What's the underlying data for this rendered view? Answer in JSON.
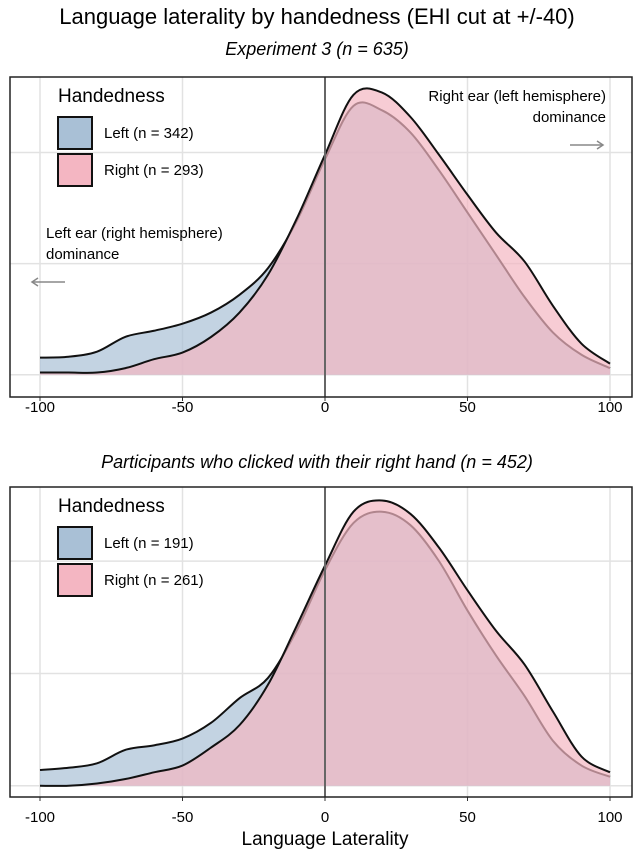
{
  "chart_data": [
    {
      "type": "density",
      "title": "Language laterality by handedness (EHI cut at +/-40)",
      "subtitle": "Experiment 3 (n = 635)",
      "legend_title": "Handedness",
      "legend": "top-left",
      "grid": true,
      "vline": 0,
      "x": [
        -100,
        -90,
        -80,
        -70,
        -60,
        -50,
        -40,
        -30,
        -20,
        -10,
        0,
        10,
        20,
        30,
        40,
        50,
        60,
        70,
        80,
        90,
        100
      ],
      "xlim": [
        -100,
        100
      ],
      "xticks": [
        -100,
        -50,
        0,
        50,
        100
      ],
      "ylim": [
        -0.001,
        0.0134
      ],
      "yticks": [
        0,
        0.005,
        0.01
      ],
      "series": [
        {
          "name": "Left (n = 342)",
          "color": "#a9c0d6",
          "values": [
            0.00077,
            0.00081,
            0.00104,
            0.00171,
            0.00198,
            0.0023,
            0.0028,
            0.0036,
            0.0048,
            0.0069,
            0.0097,
            0.0121,
            0.0119,
            0.0109,
            0.0092,
            0.0073,
            0.0054,
            0.0035,
            0.0019,
            0.0009,
            0.0003
          ]
        },
        {
          "name": "Right (n = 293)",
          "color": "#f4b6c2",
          "values": [
            0.0001,
            0.0001,
            0.0001,
            0.0003,
            0.0007,
            0.001,
            0.0017,
            0.0028,
            0.0045,
            0.007,
            0.0099,
            0.0126,
            0.0127,
            0.0116,
            0.0099,
            0.0081,
            0.0064,
            0.0051,
            0.0031,
            0.0014,
            0.0005
          ]
        }
      ],
      "annotations": [
        {
          "text": [
            "Right ear (left hemisphere)",
            "dominance"
          ],
          "x": 100,
          "anchor": "end",
          "arrow": "right"
        },
        {
          "text": [
            "Left ear (right hemisphere)",
            "dominance"
          ],
          "x": -100,
          "anchor": "start",
          "arrow": "left"
        }
      ]
    },
    {
      "type": "density",
      "subtitle": "Participants who clicked with their right hand (n = 452)",
      "xlabel": "Language Laterality",
      "legend_title": "Handedness",
      "legend": "top-left",
      "grid": true,
      "vline": 0,
      "x": [
        -100,
        -90,
        -80,
        -70,
        -60,
        -50,
        -40,
        -30,
        -20,
        -10,
        0,
        10,
        20,
        30,
        40,
        50,
        60,
        70,
        80,
        90,
        100
      ],
      "xlim": [
        -100,
        100
      ],
      "xticks": [
        -100,
        -50,
        0,
        50,
        100
      ],
      "ylim": [
        -0.0005,
        0.0133
      ],
      "yticks": [
        0,
        0.005,
        0.01
      ],
      "series": [
        {
          "name": "Left (n = 191)",
          "color": "#a9c0d6",
          "values": [
            0.0007,
            0.0008,
            0.001,
            0.0016,
            0.0018,
            0.0021,
            0.0028,
            0.0039,
            0.0048,
            0.0069,
            0.0096,
            0.0117,
            0.0122,
            0.0116,
            0.01,
            0.0078,
            0.0058,
            0.004,
            0.002,
            0.0009,
            0.0004
          ]
        },
        {
          "name": "Right (n = 261)",
          "color": "#f4b6c2",
          "values": [
            0,
            0,
            0.0001,
            0.0003,
            0.0006,
            0.0009,
            0.0017,
            0.0027,
            0.0045,
            0.0071,
            0.0098,
            0.0122,
            0.0127,
            0.0121,
            0.0106,
            0.0087,
            0.0069,
            0.0054,
            0.0033,
            0.0013,
            0.0006
          ]
        }
      ]
    }
  ]
}
